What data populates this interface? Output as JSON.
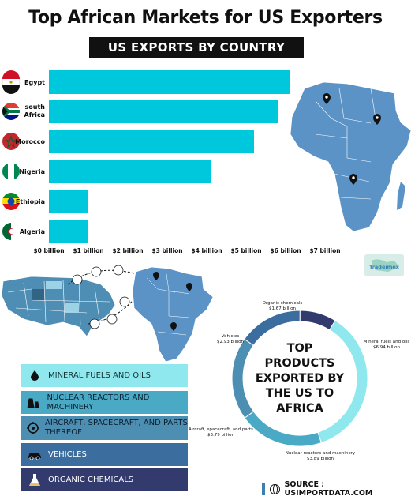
{
  "header": {
    "title": "Top African Markets for US Exporters",
    "subtitle": "US EXPORTS BY COUNTRY"
  },
  "colors": {
    "bar": "#00c8dc",
    "map": "#5b93c6",
    "mineral_fuels": "#8fe8ee",
    "nuclear": "#4aa9c4",
    "aircraft": "#4d8fb3",
    "vehicles": "#3b6d9e",
    "organic": "#323a6e"
  },
  "watermark": "Tradeimex",
  "chart_data": [
    {
      "type": "bar",
      "orientation": "horizontal",
      "categories": [
        "Egypt",
        "South Africa",
        "Morocco",
        "Nigeria",
        "Ethiopia",
        "Algeria"
      ],
      "category_display": [
        "Egypt",
        "south\nAfrica",
        "Morocco",
        "Nigeria",
        "Ethiopia",
        "Algeria"
      ],
      "values": [
        6.1,
        5.8,
        5.2,
        4.1,
        1.0,
        1.0
      ],
      "value_unit": "billion USD",
      "xlim": [
        0,
        7
      ],
      "ticks": [
        "$0 billion",
        "$1 billion",
        "$2 billion",
        "$3 billion",
        "$4 billion",
        "$5 billion",
        "$6 billion",
        "$7 billion"
      ],
      "grid": false
    },
    {
      "type": "pie",
      "variant": "donut",
      "center_text": "TOP PRODUCTS EXPORTED BY THE US TO AFRICA",
      "slices": [
        {
          "label": "Mineral fuels and oils",
          "value_label": "$6.94 billion",
          "value": 6.94,
          "color": "#8fe8ee"
        },
        {
          "label": "Nuclear reactors and machinery",
          "value_label": "$3.89 billion",
          "value": 3.89,
          "color": "#4aa9c4"
        },
        {
          "label": "Aircraft, spacecraft, and parts",
          "value_label": "$3.79 billion",
          "value": 3.79,
          "color": "#4d8fb3"
        },
        {
          "label": "Vehicles",
          "value_label": "$2.93 billion",
          "value": 2.93,
          "color": "#3b6d9e"
        },
        {
          "label": "Organic chemicals",
          "value_label": "$1.67 billion",
          "value": 1.67,
          "color": "#323a6e"
        }
      ]
    }
  ],
  "legend": [
    {
      "label": "MINERAL FUELS AND OILS",
      "icon": "oil-drop-icon"
    },
    {
      "label": "NUCLEAR REACTORS AND MACHINERY",
      "icon": "power-plant-icon"
    },
    {
      "label": "AIRCRAFT, SPACECRAFT, AND PARTS THEREOF",
      "icon": "aircraft-parts-icon"
    },
    {
      "label": "VEHICLES",
      "icon": "car-icon"
    },
    {
      "label": "ORGANIC CHEMICALS",
      "icon": "flask-icon"
    }
  ],
  "source": "SOURCE : USIMPORTDATA.COM"
}
